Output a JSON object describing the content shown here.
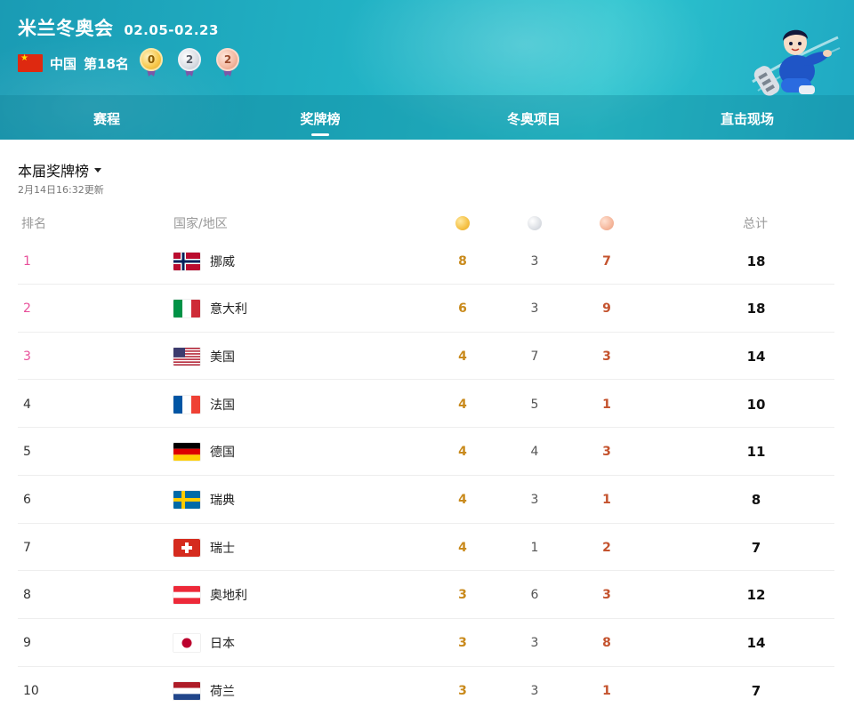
{
  "header": {
    "title": "米兰冬奥会",
    "dates": "02.05-02.23",
    "country": "中国",
    "rank": "第18名",
    "medals": {
      "gold": "0",
      "silver": "2",
      "bronze": "2"
    }
  },
  "tabs": [
    {
      "label": "赛程",
      "active": false
    },
    {
      "label": "奖牌榜",
      "active": true
    },
    {
      "label": "冬奥项目",
      "active": false
    },
    {
      "label": "直击现场",
      "active": false
    }
  ],
  "board": {
    "title": "本届奖牌榜",
    "updated": "2月14日16:32更新",
    "headers": {
      "rank": "排名",
      "country": "国家/地区",
      "total": "总计"
    }
  },
  "rows": [
    {
      "rank": "1",
      "country": "挪威",
      "flag": "norway",
      "gold": "8",
      "silver": "3",
      "bronze": "7",
      "total": "18"
    },
    {
      "rank": "2",
      "country": "意大利",
      "flag": "italy",
      "gold": "6",
      "silver": "3",
      "bronze": "9",
      "total": "18"
    },
    {
      "rank": "3",
      "country": "美国",
      "flag": "usa",
      "gold": "4",
      "silver": "7",
      "bronze": "3",
      "total": "14"
    },
    {
      "rank": "4",
      "country": "法国",
      "flag": "france",
      "gold": "4",
      "silver": "5",
      "bronze": "1",
      "total": "10"
    },
    {
      "rank": "5",
      "country": "德国",
      "flag": "germany",
      "gold": "4",
      "silver": "4",
      "bronze": "3",
      "total": "11"
    },
    {
      "rank": "6",
      "country": "瑞典",
      "flag": "sweden",
      "gold": "4",
      "silver": "3",
      "bronze": "1",
      "total": "8"
    },
    {
      "rank": "7",
      "country": "瑞士",
      "flag": "switzerland",
      "gold": "4",
      "silver": "1",
      "bronze": "2",
      "total": "7"
    },
    {
      "rank": "8",
      "country": "奥地利",
      "flag": "austria",
      "gold": "3",
      "silver": "6",
      "bronze": "3",
      "total": "12"
    },
    {
      "rank": "9",
      "country": "日本",
      "flag": "japan",
      "gold": "3",
      "silver": "3",
      "bronze": "8",
      "total": "14"
    },
    {
      "rank": "10",
      "country": "荷兰",
      "flag": "netherlands",
      "gold": "3",
      "silver": "3",
      "bronze": "1",
      "total": "7"
    }
  ],
  "colors": {
    "accent": "#22b4c6",
    "top_rank": "#e8509a",
    "gold_text": "#c98a1c",
    "bronze_text": "#c4532e"
  }
}
